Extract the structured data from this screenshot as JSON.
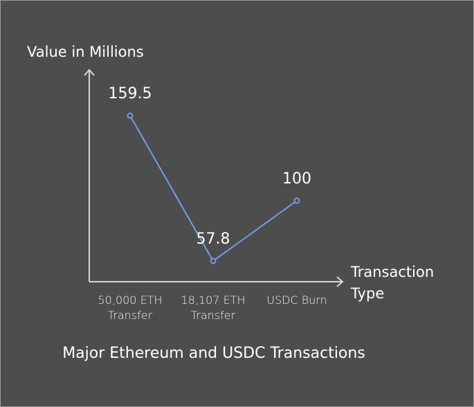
{
  "chart_data": {
    "type": "line",
    "title": "Major Ethereum and USDC Transactions",
    "y_label": "Value in Millions",
    "x_label": "Transaction Type",
    "categories": [
      "50,000 ETH Transfer",
      "18,107 ETH Transfer",
      "USDC Burn"
    ],
    "series": [
      {
        "name": "Value",
        "color": "#6d9eeb",
        "values": [
          159.5,
          57.8,
          100
        ]
      }
    ],
    "ylim": [
      43.3,
      191.5
    ],
    "axis_color": "#d9d9d9",
    "background": "#4d4d4d"
  }
}
